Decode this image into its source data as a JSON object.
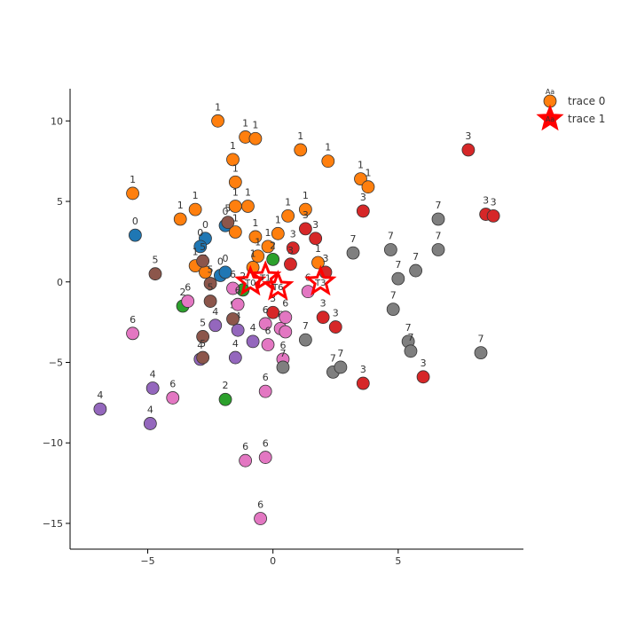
{
  "chart_data": {
    "type": "scatter",
    "title": "",
    "xlabel": "",
    "ylabel": "",
    "xlim": [
      -8.1,
      10.0
    ],
    "ylim": [
      -16.6,
      12.0
    ],
    "x_ticks": [
      -5,
      0,
      5
    ],
    "y_ticks": [
      -15,
      -10,
      -5,
      0,
      5,
      10
    ],
    "grid": false,
    "legend_position": "top-right",
    "cluster_colors": {
      "0": "#1f77b4",
      "1": "#ff7f0e",
      "2": "#2ca02c",
      "3": "#d62728",
      "4": "#9467bd",
      "5": "#8c564b",
      "6": "#e377c2",
      "7": "#7f7f7f"
    },
    "series": [
      {
        "name": "trace 0",
        "marker": "circle",
        "legend_color": "#ff7f0e",
        "legend_badge": "Aa",
        "points": [
          {
            "x": -5.5,
            "y": 2.9,
            "label": "0"
          },
          {
            "x": -2.7,
            "y": 2.7,
            "label": "0"
          },
          {
            "x": -1.9,
            "y": 3.5,
            "label": "0"
          },
          {
            "x": -2.9,
            "y": 2.2,
            "label": "0"
          },
          {
            "x": -2.1,
            "y": 0.4,
            "label": "0"
          },
          {
            "x": -1.9,
            "y": 0.6,
            "label": "0"
          },
          {
            "x": -2.2,
            "y": 10.0,
            "label": "1"
          },
          {
            "x": -1.1,
            "y": 9.0,
            "label": "1"
          },
          {
            "x": -0.7,
            "y": 8.9,
            "label": "1"
          },
          {
            "x": 1.1,
            "y": 8.2,
            "label": "1"
          },
          {
            "x": 2.2,
            "y": 7.5,
            "label": "1"
          },
          {
            "x": -1.6,
            "y": 7.6,
            "label": "1"
          },
          {
            "x": -1.5,
            "y": 6.2,
            "label": "1"
          },
          {
            "x": 3.5,
            "y": 6.4,
            "label": "1"
          },
          {
            "x": 3.8,
            "y": 5.9,
            "label": "1"
          },
          {
            "x": -5.6,
            "y": 5.5,
            "label": "1"
          },
          {
            "x": -3.1,
            "y": 4.5,
            "label": "1"
          },
          {
            "x": -1.5,
            "y": 4.7,
            "label": "1"
          },
          {
            "x": -1.0,
            "y": 4.7,
            "label": "1"
          },
          {
            "x": 1.3,
            "y": 4.5,
            "label": "1"
          },
          {
            "x": -3.7,
            "y": 3.9,
            "label": "1"
          },
          {
            "x": 0.6,
            "y": 4.1,
            "label": "1"
          },
          {
            "x": -1.5,
            "y": 3.1,
            "label": "1"
          },
          {
            "x": -0.7,
            "y": 2.8,
            "label": "1"
          },
          {
            "x": 0.2,
            "y": 3.0,
            "label": "1"
          },
          {
            "x": -0.2,
            "y": 2.2,
            "label": "1"
          },
          {
            "x": -0.6,
            "y": 1.6,
            "label": "1"
          },
          {
            "x": -3.1,
            "y": 1.0,
            "label": "1"
          },
          {
            "x": -2.7,
            "y": 0.6,
            "label": "1"
          },
          {
            "x": 1.8,
            "y": 1.2,
            "label": "1"
          },
          {
            "x": -0.8,
            "y": 0.9,
            "label": "1"
          },
          {
            "x": 0.0,
            "y": 1.4,
            "label": "2"
          },
          {
            "x": -3.6,
            "y": -1.5,
            "label": "2"
          },
          {
            "x": -1.9,
            "y": -7.3,
            "label": "2"
          },
          {
            "x": -1.2,
            "y": -0.5,
            "label": "2"
          },
          {
            "x": 7.8,
            "y": 8.2,
            "label": "3"
          },
          {
            "x": 3.6,
            "y": 4.4,
            "label": "3"
          },
          {
            "x": 8.5,
            "y": 4.2,
            "label": "3"
          },
          {
            "x": 8.8,
            "y": 4.1,
            "label": "3"
          },
          {
            "x": 1.3,
            "y": 3.3,
            "label": "3"
          },
          {
            "x": 1.7,
            "y": 2.7,
            "label": "3"
          },
          {
            "x": 0.8,
            "y": 2.1,
            "label": "3"
          },
          {
            "x": 0.7,
            "y": 1.1,
            "label": "3"
          },
          {
            "x": 2.1,
            "y": 0.6,
            "label": "3"
          },
          {
            "x": 2.0,
            "y": -2.2,
            "label": "3"
          },
          {
            "x": 2.5,
            "y": -2.8,
            "label": "3"
          },
          {
            "x": 0.0,
            "y": -1.9,
            "label": "3"
          },
          {
            "x": 3.6,
            "y": -6.3,
            "label": "3"
          },
          {
            "x": 6.0,
            "y": -5.9,
            "label": "3"
          },
          {
            "x": -6.9,
            "y": -7.9,
            "label": "4"
          },
          {
            "x": -4.8,
            "y": -6.6,
            "label": "4"
          },
          {
            "x": -4.9,
            "y": -8.8,
            "label": "4"
          },
          {
            "x": -2.3,
            "y": -2.7,
            "label": "4"
          },
          {
            "x": -1.4,
            "y": -3.0,
            "label": "4"
          },
          {
            "x": -0.8,
            "y": -3.7,
            "label": "4"
          },
          {
            "x": -1.5,
            "y": -4.7,
            "label": "4"
          },
          {
            "x": -2.9,
            "y": -4.8,
            "label": "4"
          },
          {
            "x": -4.7,
            "y": 0.5,
            "label": "5"
          },
          {
            "x": -2.8,
            "y": 1.3,
            "label": "5"
          },
          {
            "x": -2.5,
            "y": -0.1,
            "label": "5"
          },
          {
            "x": -2.5,
            "y": -1.2,
            "label": "5"
          },
          {
            "x": -2.8,
            "y": -3.4,
            "label": "5"
          },
          {
            "x": -1.6,
            "y": -2.3,
            "label": "5"
          },
          {
            "x": -2.8,
            "y": -4.7,
            "label": "5"
          },
          {
            "x": -1.8,
            "y": 3.7,
            "label": "5"
          },
          {
            "x": -5.6,
            "y": -3.2,
            "label": "6"
          },
          {
            "x": -3.4,
            "y": -1.2,
            "label": "6"
          },
          {
            "x": -1.6,
            "y": -0.4,
            "label": "6"
          },
          {
            "x": -1.4,
            "y": -1.4,
            "label": "6"
          },
          {
            "x": -0.3,
            "y": -2.6,
            "label": "6"
          },
          {
            "x": 0.3,
            "y": -2.9,
            "label": "6"
          },
          {
            "x": 0.5,
            "y": -3.1,
            "label": "6"
          },
          {
            "x": 0.5,
            "y": -2.2,
            "label": "6"
          },
          {
            "x": -0.2,
            "y": -3.9,
            "label": "6"
          },
          {
            "x": 0.4,
            "y": -4.8,
            "label": "6"
          },
          {
            "x": 1.4,
            "y": -0.6,
            "label": "6"
          },
          {
            "x": -4.0,
            "y": -7.2,
            "label": "6"
          },
          {
            "x": -0.3,
            "y": -6.8,
            "label": "6"
          },
          {
            "x": -1.1,
            "y": -11.1,
            "label": "6"
          },
          {
            "x": -0.3,
            "y": -10.9,
            "label": "6"
          },
          {
            "x": -0.5,
            "y": -14.7,
            "label": "6"
          },
          {
            "x": 6.6,
            "y": 3.9,
            "label": "7"
          },
          {
            "x": 6.6,
            "y": 2.0,
            "label": "7"
          },
          {
            "x": 4.7,
            "y": 2.0,
            "label": "7"
          },
          {
            "x": 3.2,
            "y": 1.8,
            "label": "7"
          },
          {
            "x": 5.7,
            "y": 0.7,
            "label": "7"
          },
          {
            "x": 5.0,
            "y": 0.2,
            "label": "7"
          },
          {
            "x": 4.8,
            "y": -1.7,
            "label": "7"
          },
          {
            "x": 5.4,
            "y": -3.7,
            "label": "7"
          },
          {
            "x": 5.5,
            "y": -4.3,
            "label": "7"
          },
          {
            "x": 1.3,
            "y": -3.6,
            "label": "7"
          },
          {
            "x": 0.4,
            "y": -5.3,
            "label": "7"
          },
          {
            "x": 2.4,
            "y": -5.6,
            "label": "7"
          },
          {
            "x": 2.7,
            "y": -5.3,
            "label": "7"
          },
          {
            "x": 8.3,
            "y": -4.4,
            "label": "7"
          }
        ]
      },
      {
        "name": "trace 1",
        "marker": "star",
        "legend_color": "#ff0000",
        "legend_badge": "Aa",
        "points": [
          {
            "x": -0.9,
            "y": 0.0,
            "label": "T0"
          },
          {
            "x": -0.3,
            "y": 0.3,
            "label": "T1"
          },
          {
            "x": 0.2,
            "y": -0.3,
            "label": "T6"
          },
          {
            "x": 1.9,
            "y": 0.0,
            "label": "T3"
          }
        ]
      }
    ]
  }
}
